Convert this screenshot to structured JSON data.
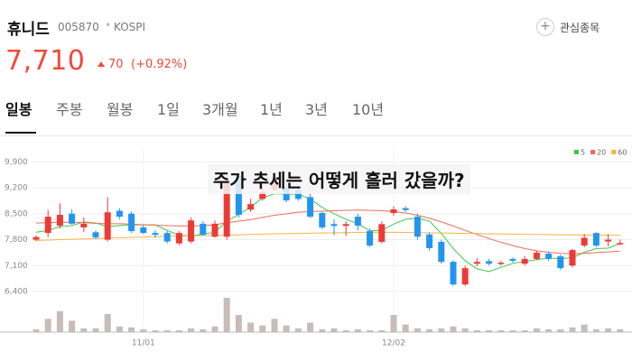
{
  "header": {
    "name": "휴니드",
    "code": "005870",
    "market": "KOSPI",
    "watch_button": "관심종목",
    "price": "7,710",
    "change": "70",
    "change_pct": "(+0.92%)"
  },
  "tabs": [
    "일봉",
    "주봉",
    "월봉",
    "1일",
    "3개월",
    "1년",
    "3년",
    "10년"
  ],
  "active_tab": 0,
  "overlay_text": "주가 추세는 어떻게 흘러 갔을까?",
  "chart_data": {
    "type": "candlestick",
    "categories": [
      null,
      null,
      null,
      null,
      null,
      null,
      null,
      null,
      null,
      "11/01",
      null,
      null,
      null,
      null,
      null,
      null,
      null,
      null,
      null,
      null,
      null,
      null,
      null,
      null,
      null,
      null,
      null,
      null,
      null,
      null,
      "12/02",
      null,
      null,
      null,
      null,
      null,
      null,
      null,
      null,
      null,
      null,
      null,
      null,
      null,
      null,
      null,
      null,
      null,
      null,
      null
    ],
    "open": [
      7800,
      7980,
      8175,
      8500,
      8130,
      8000,
      7800,
      8580,
      8500,
      8130,
      7980,
      7980,
      7700,
      7750,
      8230,
      7880,
      7880,
      9520,
      8610,
      8900,
      9150,
      9220,
      9150,
      8950,
      8520,
      8220,
      8170,
      8420,
      8030,
      7740,
      8520,
      8650,
      8420,
      7940,
      7740,
      7200,
      6590,
      7150,
      7220,
      7150,
      7280,
      7150,
      7280,
      7420,
      7350,
      7100,
      7640,
      7980,
      7750,
      7680
    ],
    "high": [
      7920,
      8600,
      8780,
      8620,
      8400,
      8050,
      8950,
      8650,
      8560,
      8200,
      8050,
      8030,
      8030,
      8400,
      8300,
      8320,
      9520,
      9600,
      8900,
      9250,
      9500,
      9300,
      9300,
      9050,
      8550,
      8350,
      8300,
      8500,
      8100,
      8300,
      8700,
      8700,
      8500,
      8000,
      7800,
      7250,
      7100,
      7300,
      7280,
      7230,
      7320,
      7350,
      7500,
      7480,
      7400,
      7550,
      7950,
      8000,
      7950,
      7800
    ],
    "low": [
      7760,
      7870,
      8100,
      8200,
      8000,
      7820,
      7750,
      8350,
      7980,
      7950,
      7850,
      7700,
      7650,
      7700,
      7900,
      7850,
      7800,
      8400,
      8550,
      8850,
      9100,
      8800,
      8850,
      8380,
      8080,
      7920,
      7900,
      8050,
      7600,
      7700,
      8450,
      8550,
      7800,
      7500,
      7150,
      6550,
      6550,
      7080,
      7100,
      7100,
      7180,
      7100,
      7250,
      7230,
      6980,
      7050,
      7600,
      7600,
      7620,
      7650
    ],
    "close": [
      7870,
      8420,
      8470,
      8230,
      8230,
      7860,
      8540,
      8420,
      8030,
      7980,
      7930,
      7750,
      7980,
      8320,
      7930,
      8230,
      9390,
      8470,
      8760,
      9080,
      9420,
      8860,
      8900,
      8420,
      8130,
      8170,
      8220,
      8175,
      7640,
      8220,
      8620,
      8600,
      7880,
      7570,
      7200,
      6590,
      7030,
      7200,
      7150,
      7180,
      7230,
      7280,
      7450,
      7280,
      7030,
      7520,
      7850,
      7640,
      7800,
      7710
    ],
    "volume": [
      3,
      14,
      22,
      12,
      4,
      4,
      19,
      6,
      5,
      3,
      2,
      2,
      2,
      4,
      3,
      6,
      36,
      18,
      10,
      7,
      14,
      7,
      4,
      10,
      3,
      4,
      2,
      3,
      2,
      2,
      18,
      8,
      4,
      3,
      4,
      6,
      4,
      2,
      2,
      2,
      2,
      2,
      4,
      3,
      3,
      5,
      8,
      3,
      4,
      3
    ],
    "up_color": "#ec3b37",
    "down_color": "#2196f0",
    "volume_color": "#c8bcb8",
    "moving_averages": [
      {
        "name": "5",
        "color": "#3cc94b",
        "values": [
          8000,
          8050,
          8150,
          8180,
          8280,
          8250,
          8150,
          8180,
          8200,
          8200,
          8200,
          8050,
          7920,
          7900,
          7950,
          8000,
          8300,
          8480,
          8680,
          8930,
          9040,
          9030,
          9030,
          8900,
          8670,
          8500,
          8350,
          8230,
          8040,
          8050,
          8220,
          8350,
          8380,
          8300,
          7970,
          7560,
          7230,
          7010,
          6940,
          7050,
          7160,
          7210,
          7260,
          7300,
          7290,
          7310,
          7460,
          7560,
          7570,
          7700
        ]
      },
      {
        "name": "20",
        "color": "#f06a5a",
        "values": [
          8250,
          8260,
          8270,
          8270,
          8260,
          8240,
          8230,
          8230,
          8220,
          8200,
          8190,
          8180,
          8170,
          8170,
          8180,
          8200,
          8260,
          8300,
          8340,
          8400,
          8460,
          8500,
          8540,
          8560,
          8570,
          8580,
          8590,
          8600,
          8590,
          8580,
          8560,
          8520,
          8460,
          8380,
          8280,
          8170,
          8050,
          7940,
          7830,
          7730,
          7640,
          7560,
          7500,
          7460,
          7430,
          7420,
          7430,
          7450,
          7470,
          7490
        ]
      },
      {
        "name": "60",
        "color": "#f5b342",
        "values": [
          7780,
          7790,
          7800,
          7810,
          7820,
          7830,
          7840,
          7850,
          7860,
          7870,
          7880,
          7890,
          7900,
          7905,
          7910,
          7915,
          7920,
          7930,
          7940,
          7950,
          7960,
          7965,
          7970,
          7975,
          7980,
          7985,
          7990,
          7995,
          8000,
          8000,
          8000,
          7995,
          7990,
          7985,
          7980,
          7975,
          7970,
          7965,
          7960,
          7955,
          7950,
          7945,
          7940,
          7935,
          7930,
          7930,
          7925,
          7925,
          7920,
          7920
        ]
      }
    ],
    "ylim": [
      6400,
      10250
    ],
    "yticks": [
      {
        "value": 6400,
        "label": "6,400"
      },
      {
        "value": 7100,
        "label": "7,100"
      },
      {
        "value": 7800,
        "label": "7,800"
      },
      {
        "value": 8500,
        "label": "8,500"
      },
      {
        "value": 9200,
        "label": "9,200"
      },
      {
        "value": 9900,
        "label": "9,900"
      }
    ],
    "grid": true
  }
}
